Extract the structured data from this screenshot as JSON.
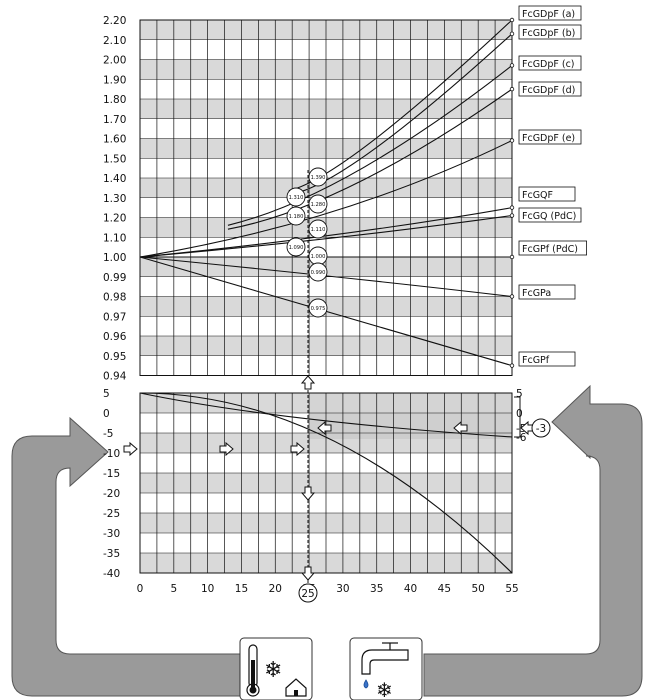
{
  "top_axis_ticks": [
    "2.20",
    "2.10",
    "2.00",
    "1.90",
    "1.80",
    "1.70",
    "1.60",
    "1.50",
    "1.40",
    "1.30",
    "1.20",
    "1.10",
    "1.00",
    "0.99",
    "0.98",
    "0.97",
    "0.96",
    "0.95",
    "0.94"
  ],
  "bottom_axis_ticks": [
    "5",
    "0",
    "-5",
    "-10",
    "-15",
    "-20",
    "-25",
    "-30",
    "-35",
    "-40"
  ],
  "x_axis_ticks": [
    "0",
    "5",
    "10",
    "15",
    "20",
    "25",
    "30",
    "35",
    "40",
    "45",
    "50",
    "55"
  ],
  "right_axis_ticks": [
    "5",
    "0",
    "-5",
    "-6"
  ],
  "curve_labels": [
    "FcGDpF (a)",
    "FcGDpF (b)",
    "FcGDpF (c)",
    "FcGDpF (d)",
    "FcGDpF (e)",
    "FcGQF",
    "FcGQ (PdC)",
    "FcGPf (PdC)",
    "FcGPa",
    "FcGPf"
  ],
  "marker_values": [
    "1.390",
    "1.310",
    "1.280",
    "1.180",
    "1.110",
    "1.090",
    "1.000",
    "0.990",
    "0.975"
  ],
  "selected_x": "25",
  "input_value": "-3",
  "icons": {
    "left": "thermometer-snowflake-house-icon",
    "right": "faucet-water-snowflake-icon"
  },
  "colors": {
    "band": "#d9d9d9",
    "shade": "#cfcfcf",
    "arrow": "#9a9a9a",
    "line": "#111111"
  }
}
